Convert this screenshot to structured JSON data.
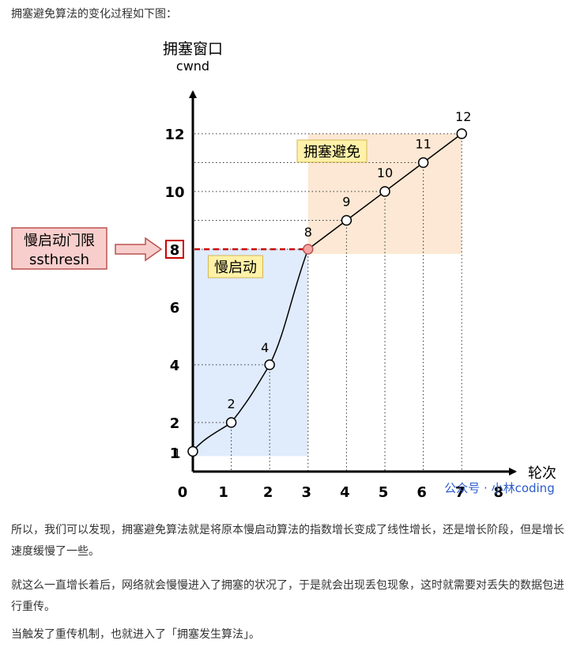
{
  "heading": "拥塞避免算法的变化过程如下图：",
  "chart_data": {
    "type": "line",
    "ylabel": "拥塞窗口",
    "ylabel_sub": "cwnd",
    "xlabel": "轮次",
    "x_ticks": [
      0,
      1,
      2,
      3,
      4,
      5,
      6,
      7,
      8
    ],
    "y_ticks": [
      1,
      2,
      4,
      6,
      8,
      10,
      12
    ],
    "xlim": [
      0,
      8
    ],
    "ylim": [
      0,
      13
    ],
    "series": [
      {
        "points": [
          {
            "x": 0,
            "y": 1,
            "label": "1"
          },
          {
            "x": 1,
            "y": 2,
            "label": "2"
          },
          {
            "x": 2,
            "y": 4,
            "label": "4"
          },
          {
            "x": 3,
            "y": 8,
            "label": "8"
          },
          {
            "x": 4,
            "y": 9,
            "label": "9"
          },
          {
            "x": 5,
            "y": 10,
            "label": "10"
          },
          {
            "x": 6,
            "y": 11,
            "label": "11"
          },
          {
            "x": 7,
            "y": 12,
            "label": "12"
          }
        ]
      }
    ],
    "regions": [
      {
        "label": "慢启动",
        "x": [
          0,
          3
        ],
        "y": [
          1,
          8
        ],
        "color": "#dae8fc"
      },
      {
        "label": "拥塞避免",
        "x": [
          3,
          7
        ],
        "y": [
          8,
          12
        ],
        "color": "#fce4cc"
      }
    ],
    "threshold": {
      "value": 8,
      "label_line1": "慢启动门限",
      "label_line2": "ssthresh",
      "color": "#cc0000"
    },
    "watermark": "公众号 · 小林coding",
    "colors": {
      "axis": "#000000",
      "label_box": "#fff2a8",
      "threshold_box": "#f8cecc",
      "watermark": "#2b5ccc"
    }
  },
  "paragraphs": {
    "p1": "所以，我们可以发现，拥塞避免算法就是将原本慢启动算法的指数增长变成了线性增长，还是增长阶段，但是增长速度缓慢了一些。",
    "p2": "就这么一直增长着后，网络就会慢慢进入了拥塞的状况了，于是就会出现丢包现象，这时就需要对丢失的数据包进行重传。",
    "p3": "当触发了重传机制，也就进入了「拥塞发生算法」。"
  }
}
